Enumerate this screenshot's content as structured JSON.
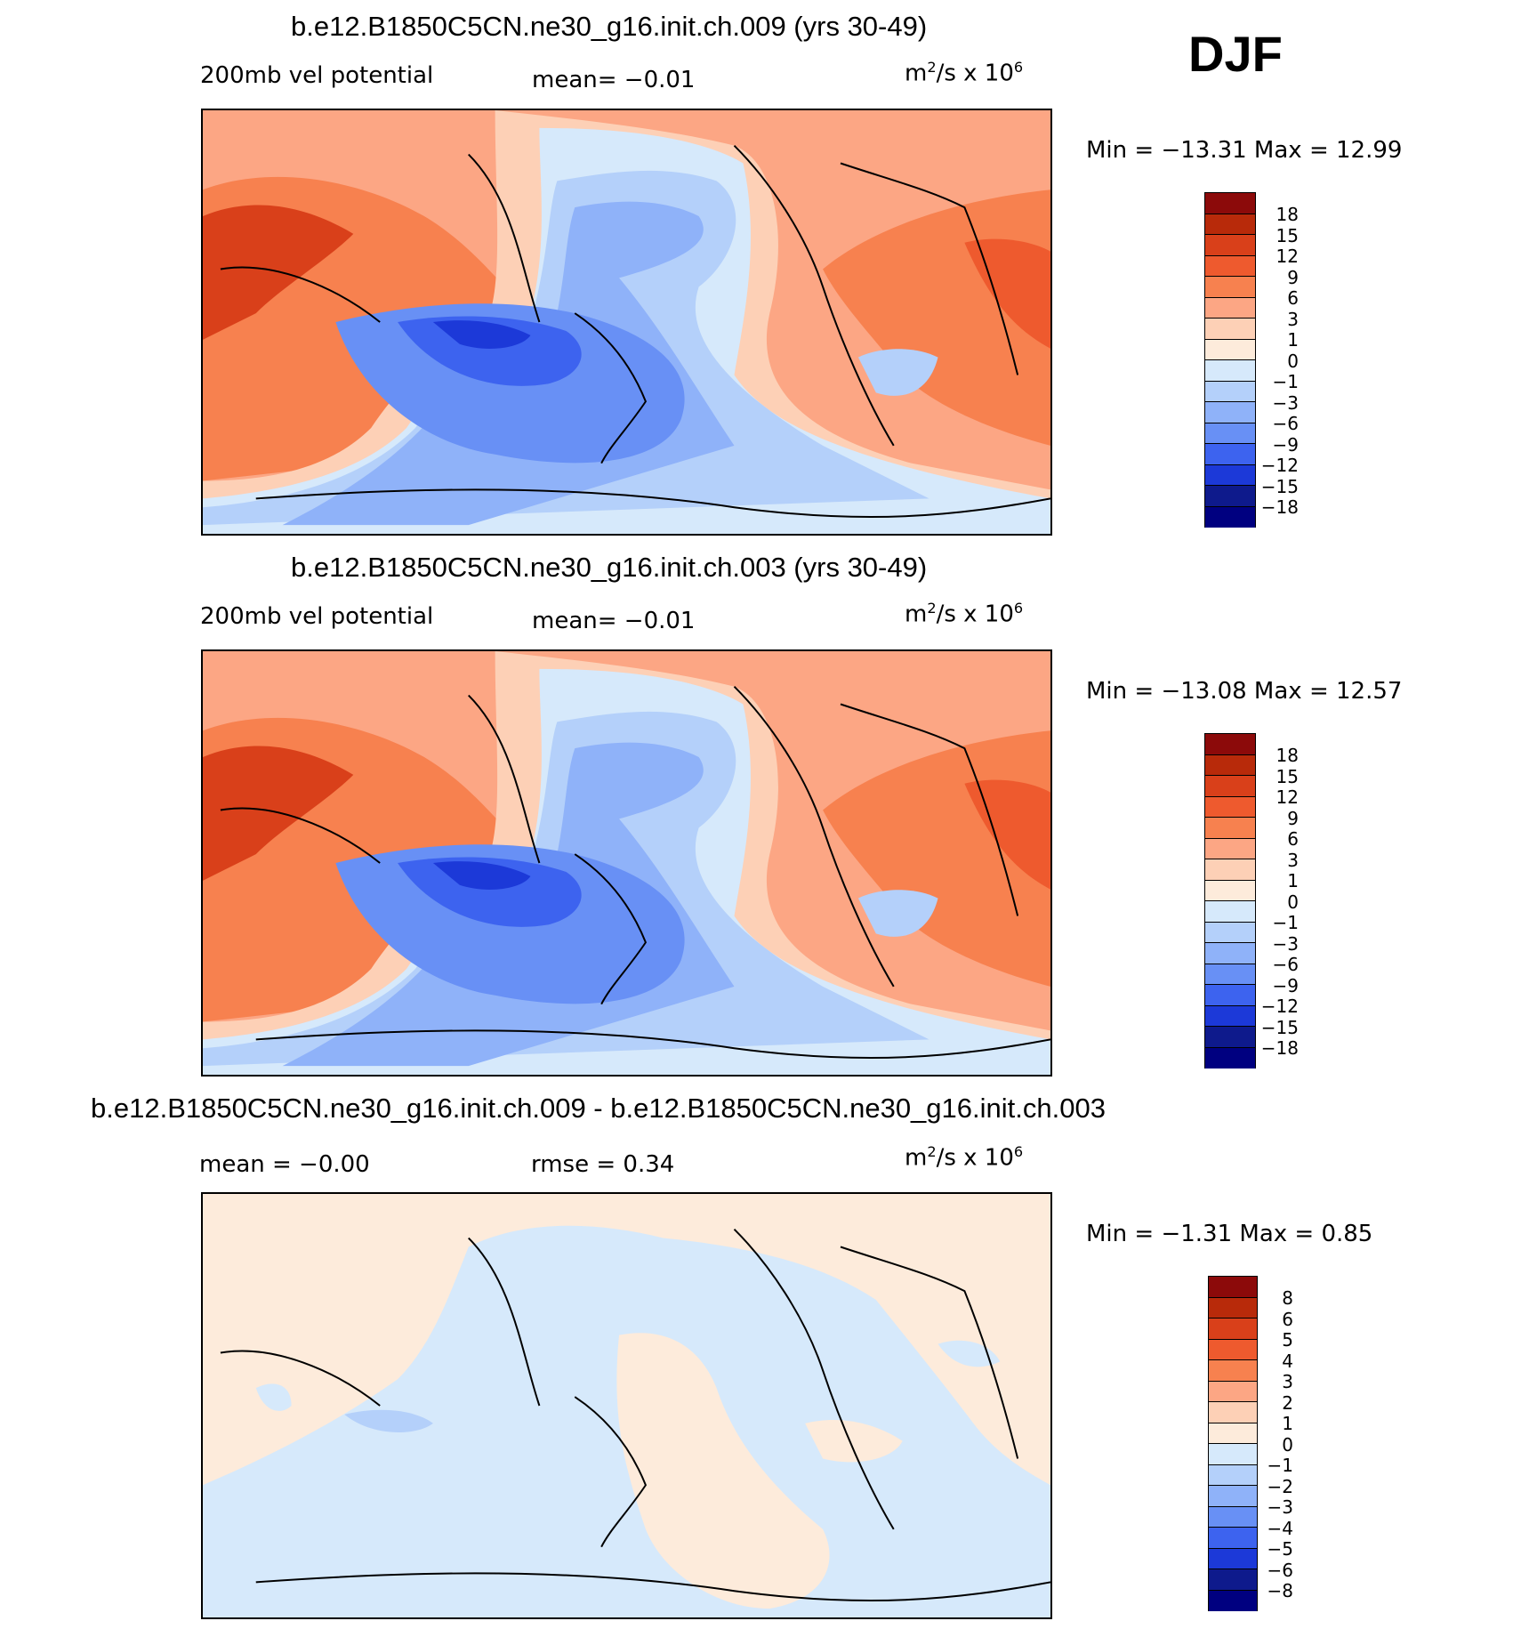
{
  "season": "DJF",
  "panels": [
    {
      "title": "b.e12.B1850C5CN.ne30_g16.init.ch.009 (yrs 30-49)",
      "variable": "200mb vel potential",
      "stat1": "mean=   −0.01",
      "units_base": "m",
      "units_rest": "/s x 10",
      "units_exp1": "2",
      "units_exp2": "6",
      "minmax": "Min  =  −13.31  Max  =    12.99",
      "colorbar_labels": [
        "18",
        "15",
        "12",
        "9",
        "6",
        "3",
        "1",
        "0",
        "−1",
        "−3",
        "−6",
        "−9",
        "−12",
        "−15",
        "−18"
      ]
    },
    {
      "title": "b.e12.B1850C5CN.ne30_g16.init.ch.003 (yrs 30-49)",
      "variable": "200mb vel potential",
      "stat1": "mean=   −0.01",
      "units_base": "m",
      "units_rest": "/s x 10",
      "units_exp1": "2",
      "units_exp2": "6",
      "minmax": "Min  =  −13.08  Max  =    12.57",
      "colorbar_labels": [
        "18",
        "15",
        "12",
        "9",
        "6",
        "3",
        "1",
        "0",
        "−1",
        "−3",
        "−6",
        "−9",
        "−12",
        "−15",
        "−18"
      ]
    },
    {
      "title": "b.e12.B1850C5CN.ne30_g16.init.ch.009 - b.e12.B1850C5CN.ne30_g16.init.ch.003",
      "stat1": "mean =    −0.00",
      "stat2": "rmse =     0.34",
      "units_base": "m",
      "units_rest": "/s x 10",
      "units_exp1": "2",
      "units_exp2": "6",
      "minmax": "Min  =    −1.31  Max  =     0.85",
      "colorbar_labels": [
        "8",
        "6",
        "5",
        "4",
        "3",
        "2",
        "1",
        "0",
        "−1",
        "−2",
        "−3",
        "−4",
        "−5",
        "−6",
        "−8"
      ]
    }
  ],
  "colors": {
    "scale": [
      "#8c0a0a",
      "#b82a0a",
      "#d9401a",
      "#ee5a2e",
      "#f7814f",
      "#fca684",
      "#fdd0b6",
      "#fdebdb",
      "#d6e9fb",
      "#b4d0fa",
      "#8fb2f9",
      "#6890f5",
      "#3d63ef",
      "#1c39d8",
      "#0e1a8c"
    ]
  }
}
